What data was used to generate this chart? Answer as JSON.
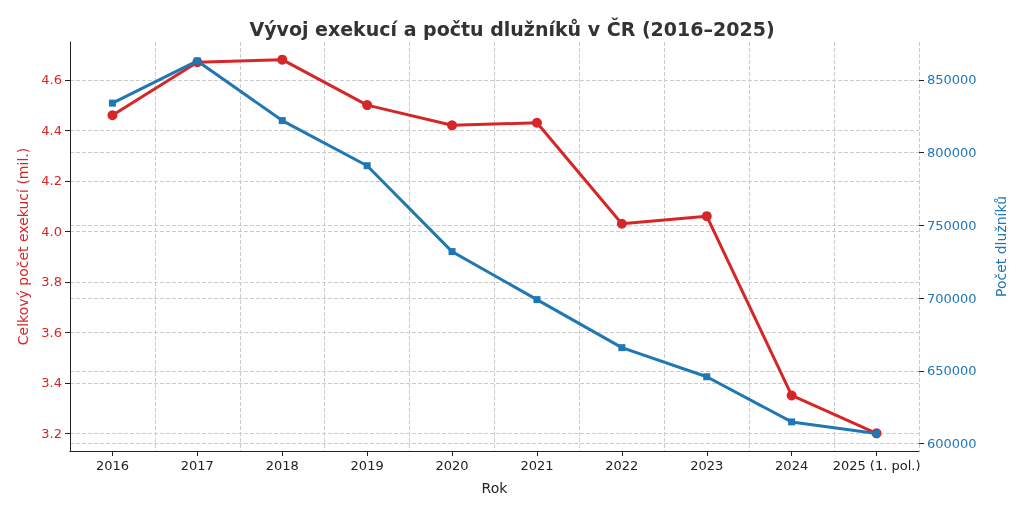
{
  "chart_data": {
    "type": "line",
    "title": "Vývoj exekucí a počtu dlužníků v ČR (2016–2025)",
    "xlabel": "Rok",
    "ylabel": "Celkový počet exekucí (mil.)",
    "y2label": "Počet dlužníků",
    "categories": [
      "2016",
      "2017",
      "2018",
      "2019",
      "2020",
      "2021",
      "2022",
      "2023",
      "2024",
      "2025 (1. pol.)"
    ],
    "series": [
      {
        "color": "#d62728",
        "marker": "circle",
        "values": [
          4.46,
          4.67,
          4.68,
          4.5,
          4.42,
          4.43,
          4.03,
          4.06,
          3.35,
          3.2
        ]
      },
      {
        "color": "#1f77b4",
        "marker": "square",
        "axis": "y2",
        "values": [
          834000,
          863000,
          822000,
          791000,
          732000,
          699000,
          666000,
          646000,
          615000,
          607000
        ]
      }
    ],
    "ylim": [
      3.13,
      4.75
    ],
    "yticks": [
      {
        "value": 3.2,
        "label": "3.2"
      },
      {
        "value": 3.4,
        "label": "3.4"
      },
      {
        "value": 3.6,
        "label": "3.6"
      },
      {
        "value": 3.8,
        "label": "3.8"
      },
      {
        "value": 4.0,
        "label": "4.0"
      },
      {
        "value": 4.2,
        "label": "4.2"
      },
      {
        "value": 4.4,
        "label": "4.4"
      },
      {
        "value": 4.6,
        "label": "4.6"
      }
    ],
    "y2lim": [
      595000,
      876000
    ],
    "y2ticks": [
      600000,
      650000,
      700000,
      750000,
      800000,
      850000
    ],
    "grid": true,
    "line_style": "solid"
  }
}
